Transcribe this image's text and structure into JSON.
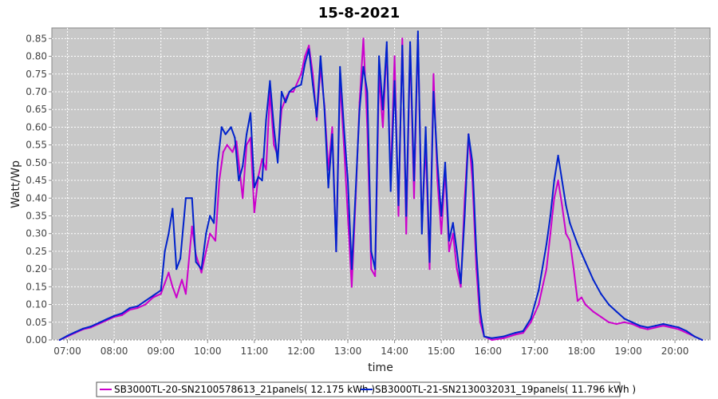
{
  "chart_data": {
    "type": "line",
    "title": "15-8-2021",
    "xlabel": "time",
    "ylabel": "Watt/Wp",
    "xlim": [
      "06:40",
      "20:45"
    ],
    "ylim": [
      0,
      0.88
    ],
    "x_ticks": [
      "07:00",
      "08:00",
      "09:00",
      "10:00",
      "11:00",
      "12:00",
      "13:00",
      "14:00",
      "15:00",
      "16:00",
      "17:00",
      "18:00",
      "19:00",
      "20:00"
    ],
    "y_ticks": [
      "0.00",
      "0.05",
      "0.10",
      "0.15",
      "0.20",
      "0.25",
      "0.30",
      "0.35",
      "0.40",
      "0.45",
      "0.50",
      "0.55",
      "0.60",
      "0.65",
      "0.70",
      "0.75",
      "0.80",
      "0.85"
    ],
    "grid": true,
    "legend_position": "bottom",
    "plot_background": "#c8c8c8",
    "series": [
      {
        "name": "SB3000TL-20-SN2100578613_21panels( 12.175 kWh )",
        "color": "#cc00cc",
        "points": [
          [
            "06:50",
            0.0
          ],
          [
            "07:00",
            0.01
          ],
          [
            "07:10",
            0.02
          ],
          [
            "07:20",
            0.03
          ],
          [
            "07:30",
            0.035
          ],
          [
            "07:40",
            0.045
          ],
          [
            "07:50",
            0.055
          ],
          [
            "08:00",
            0.065
          ],
          [
            "08:10",
            0.07
          ],
          [
            "08:20",
            0.085
          ],
          [
            "08:30",
            0.09
          ],
          [
            "08:40",
            0.1
          ],
          [
            "08:50",
            0.12
          ],
          [
            "09:00",
            0.13
          ],
          [
            "09:05",
            0.16
          ],
          [
            "09:10",
            0.19
          ],
          [
            "09:15",
            0.15
          ],
          [
            "09:20",
            0.12
          ],
          [
            "09:27",
            0.17
          ],
          [
            "09:32",
            0.13
          ],
          [
            "09:40",
            0.32
          ],
          [
            "09:45",
            0.24
          ],
          [
            "09:52",
            0.19
          ],
          [
            "09:58",
            0.25
          ],
          [
            "10:03",
            0.3
          ],
          [
            "10:10",
            0.28
          ],
          [
            "10:15",
            0.45
          ],
          [
            "10:20",
            0.53
          ],
          [
            "10:25",
            0.55
          ],
          [
            "10:32",
            0.53
          ],
          [
            "10:37",
            0.56
          ],
          [
            "10:45",
            0.4
          ],
          [
            "10:50",
            0.55
          ],
          [
            "10:55",
            0.57
          ],
          [
            "11:00",
            0.36
          ],
          [
            "11:05",
            0.46
          ],
          [
            "11:10",
            0.51
          ],
          [
            "11:15",
            0.48
          ],
          [
            "11:20",
            0.7
          ],
          [
            "11:25",
            0.55
          ],
          [
            "11:30",
            0.52
          ],
          [
            "11:35",
            0.65
          ],
          [
            "11:40",
            0.68
          ],
          [
            "11:45",
            0.7
          ],
          [
            "11:50",
            0.7
          ],
          [
            "12:00",
            0.75
          ],
          [
            "12:05",
            0.8
          ],
          [
            "12:10",
            0.83
          ],
          [
            "12:15",
            0.75
          ],
          [
            "12:20",
            0.62
          ],
          [
            "12:25",
            0.77
          ],
          [
            "12:30",
            0.66
          ],
          [
            "12:35",
            0.48
          ],
          [
            "12:40",
            0.6
          ],
          [
            "12:45",
            0.25
          ],
          [
            "12:50",
            0.73
          ],
          [
            "12:55",
            0.55
          ],
          [
            "13:00",
            0.35
          ],
          [
            "13:05",
            0.15
          ],
          [
            "13:10",
            0.4
          ],
          [
            "13:15",
            0.67
          ],
          [
            "13:20",
            0.85
          ],
          [
            "13:25",
            0.6
          ],
          [
            "13:30",
            0.2
          ],
          [
            "13:35",
            0.18
          ],
          [
            "13:40",
            0.75
          ],
          [
            "13:45",
            0.6
          ],
          [
            "13:50",
            0.83
          ],
          [
            "13:55",
            0.45
          ],
          [
            "14:00",
            0.8
          ],
          [
            "14:05",
            0.35
          ],
          [
            "14:10",
            0.85
          ],
          [
            "14:15",
            0.3
          ],
          [
            "14:20",
            0.83
          ],
          [
            "14:25",
            0.4
          ],
          [
            "14:30",
            0.86
          ],
          [
            "14:35",
            0.32
          ],
          [
            "14:40",
            0.55
          ],
          [
            "14:45",
            0.2
          ],
          [
            "14:50",
            0.75
          ],
          [
            "14:55",
            0.45
          ],
          [
            "15:00",
            0.3
          ],
          [
            "15:05",
            0.48
          ],
          [
            "15:10",
            0.25
          ],
          [
            "15:15",
            0.3
          ],
          [
            "15:20",
            0.2
          ],
          [
            "15:25",
            0.15
          ],
          [
            "15:30",
            0.4
          ],
          [
            "15:35",
            0.58
          ],
          [
            "15:40",
            0.45
          ],
          [
            "15:45",
            0.2
          ],
          [
            "15:50",
            0.05
          ],
          [
            "15:55",
            0.01
          ],
          [
            "16:05",
            0.0
          ],
          [
            "16:20",
            0.005
          ],
          [
            "16:35",
            0.015
          ],
          [
            "16:45",
            0.02
          ],
          [
            "16:55",
            0.05
          ],
          [
            "17:05",
            0.1
          ],
          [
            "17:15",
            0.2
          ],
          [
            "17:20",
            0.3
          ],
          [
            "17:25",
            0.4
          ],
          [
            "17:30",
            0.45
          ],
          [
            "17:35",
            0.38
          ],
          [
            "17:40",
            0.3
          ],
          [
            "17:45",
            0.28
          ],
          [
            "17:50",
            0.2
          ],
          [
            "17:55",
            0.11
          ],
          [
            "18:00",
            0.12
          ],
          [
            "18:05",
            0.1
          ],
          [
            "18:15",
            0.08
          ],
          [
            "18:25",
            0.065
          ],
          [
            "18:35",
            0.05
          ],
          [
            "18:45",
            0.045
          ],
          [
            "18:55",
            0.05
          ],
          [
            "19:05",
            0.045
          ],
          [
            "19:15",
            0.035
          ],
          [
            "19:25",
            0.03
          ],
          [
            "19:35",
            0.035
          ],
          [
            "19:45",
            0.04
          ],
          [
            "19:55",
            0.035
          ],
          [
            "20:05",
            0.03
          ],
          [
            "20:15",
            0.02
          ],
          [
            "20:25",
            0.01
          ],
          [
            "20:35",
            0.0
          ]
        ]
      },
      {
        "name": "SB3000TL-21-SN2130032031_19panels( 11.796 kWh )",
        "color": "#0022cc",
        "points": [
          [
            "06:50",
            0.0
          ],
          [
            "07:00",
            0.012
          ],
          [
            "07:10",
            0.022
          ],
          [
            "07:20",
            0.032
          ],
          [
            "07:30",
            0.038
          ],
          [
            "07:40",
            0.048
          ],
          [
            "07:50",
            0.058
          ],
          [
            "08:00",
            0.068
          ],
          [
            "08:10",
            0.075
          ],
          [
            "08:20",
            0.09
          ],
          [
            "08:30",
            0.095
          ],
          [
            "08:40",
            0.11
          ],
          [
            "08:50",
            0.125
          ],
          [
            "09:00",
            0.14
          ],
          [
            "09:05",
            0.25
          ],
          [
            "09:10",
            0.3
          ],
          [
            "09:15",
            0.37
          ],
          [
            "09:20",
            0.2
          ],
          [
            "09:25",
            0.23
          ],
          [
            "09:32",
            0.4
          ],
          [
            "09:40",
            0.4
          ],
          [
            "09:45",
            0.22
          ],
          [
            "09:52",
            0.2
          ],
          [
            "09:58",
            0.3
          ],
          [
            "10:03",
            0.35
          ],
          [
            "10:08",
            0.33
          ],
          [
            "10:13",
            0.5
          ],
          [
            "10:18",
            0.6
          ],
          [
            "10:23",
            0.58
          ],
          [
            "10:30",
            0.6
          ],
          [
            "10:35",
            0.57
          ],
          [
            "10:40",
            0.45
          ],
          [
            "10:45",
            0.49
          ],
          [
            "10:50",
            0.58
          ],
          [
            "10:55",
            0.64
          ],
          [
            "11:00",
            0.43
          ],
          [
            "11:05",
            0.46
          ],
          [
            "11:10",
            0.45
          ],
          [
            "11:15",
            0.62
          ],
          [
            "11:20",
            0.73
          ],
          [
            "11:25",
            0.6
          ],
          [
            "11:30",
            0.5
          ],
          [
            "11:35",
            0.7
          ],
          [
            "11:40",
            0.67
          ],
          [
            "11:45",
            0.7
          ],
          [
            "11:50",
            0.71
          ],
          [
            "12:00",
            0.72
          ],
          [
            "12:05",
            0.78
          ],
          [
            "12:10",
            0.82
          ],
          [
            "12:15",
            0.72
          ],
          [
            "12:20",
            0.63
          ],
          [
            "12:25",
            0.8
          ],
          [
            "12:30",
            0.65
          ],
          [
            "12:35",
            0.43
          ],
          [
            "12:40",
            0.58
          ],
          [
            "12:45",
            0.25
          ],
          [
            "12:50",
            0.77
          ],
          [
            "12:55",
            0.6
          ],
          [
            "13:00",
            0.45
          ],
          [
            "13:05",
            0.2
          ],
          [
            "13:10",
            0.42
          ],
          [
            "13:15",
            0.65
          ],
          [
            "13:20",
            0.77
          ],
          [
            "13:25",
            0.7
          ],
          [
            "13:30",
            0.25
          ],
          [
            "13:35",
            0.2
          ],
          [
            "13:40",
            0.8
          ],
          [
            "13:45",
            0.65
          ],
          [
            "13:50",
            0.84
          ],
          [
            "13:55",
            0.42
          ],
          [
            "14:00",
            0.73
          ],
          [
            "14:05",
            0.38
          ],
          [
            "14:10",
            0.83
          ],
          [
            "14:15",
            0.35
          ],
          [
            "14:20",
            0.84
          ],
          [
            "14:25",
            0.45
          ],
          [
            "14:30",
            0.87
          ],
          [
            "14:35",
            0.3
          ],
          [
            "14:40",
            0.6
          ],
          [
            "14:45",
            0.22
          ],
          [
            "14:50",
            0.7
          ],
          [
            "14:55",
            0.5
          ],
          [
            "15:00",
            0.35
          ],
          [
            "15:05",
            0.5
          ],
          [
            "15:10",
            0.28
          ],
          [
            "15:15",
            0.33
          ],
          [
            "15:20",
            0.25
          ],
          [
            "15:25",
            0.16
          ],
          [
            "15:30",
            0.35
          ],
          [
            "15:35",
            0.58
          ],
          [
            "15:40",
            0.5
          ],
          [
            "15:45",
            0.25
          ],
          [
            "15:50",
            0.08
          ],
          [
            "15:55",
            0.01
          ],
          [
            "16:05",
            0.005
          ],
          [
            "16:20",
            0.01
          ],
          [
            "16:35",
            0.02
          ],
          [
            "16:45",
            0.025
          ],
          [
            "16:55",
            0.06
          ],
          [
            "17:05",
            0.14
          ],
          [
            "17:15",
            0.27
          ],
          [
            "17:20",
            0.35
          ],
          [
            "17:25",
            0.45
          ],
          [
            "17:30",
            0.52
          ],
          [
            "17:35",
            0.45
          ],
          [
            "17:40",
            0.38
          ],
          [
            "17:45",
            0.33
          ],
          [
            "17:50",
            0.3
          ],
          [
            "17:55",
            0.27
          ],
          [
            "18:05",
            0.22
          ],
          [
            "18:15",
            0.17
          ],
          [
            "18:25",
            0.13
          ],
          [
            "18:35",
            0.1
          ],
          [
            "18:45",
            0.08
          ],
          [
            "18:55",
            0.06
          ],
          [
            "19:05",
            0.05
          ],
          [
            "19:15",
            0.04
          ],
          [
            "19:25",
            0.035
          ],
          [
            "19:35",
            0.04
          ],
          [
            "19:45",
            0.045
          ],
          [
            "19:55",
            0.04
          ],
          [
            "20:05",
            0.035
          ],
          [
            "20:15",
            0.025
          ],
          [
            "20:25",
            0.01
          ],
          [
            "20:35",
            0.0
          ]
        ]
      }
    ]
  }
}
